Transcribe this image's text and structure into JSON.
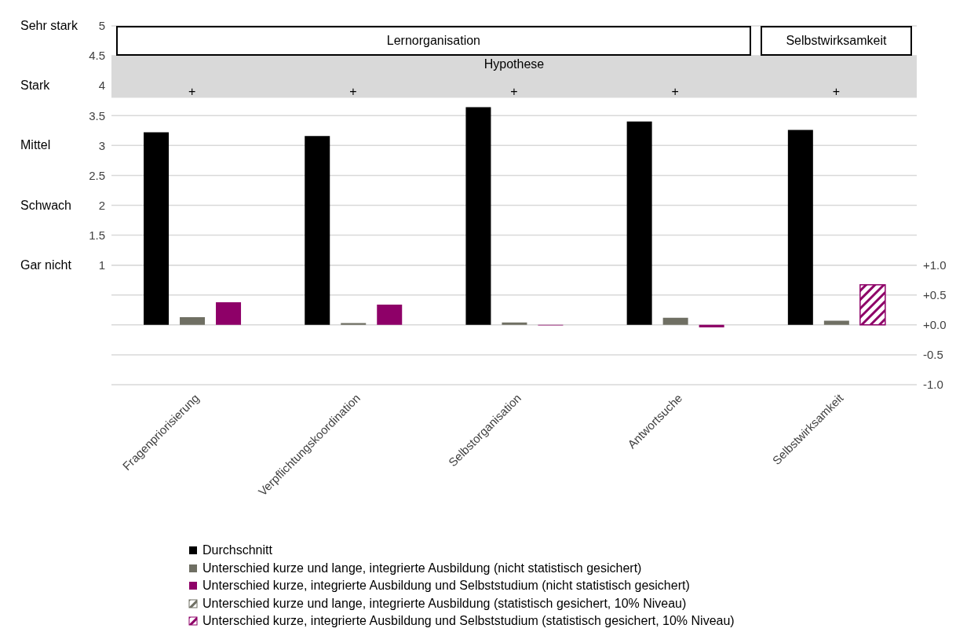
{
  "chart_data": {
    "type": "bar",
    "categories": [
      "Fragenpriorisierung",
      "Verpflichtungskoordination",
      "Selbstorganisation",
      "Antwortsuche",
      "Selbstwirksamkeit"
    ],
    "series": [
      {
        "name": "Durchschnitt",
        "color": "#000000",
        "values": [
          3.22,
          3.16,
          3.64,
          3.4,
          3.26
        ]
      },
      {
        "name": "Unterschied kurze und lange, integrierte Ausbildung (nicht statistisch gesichert)",
        "color": "#6f6f63",
        "axis": "y2",
        "values": [
          0.13,
          0.03,
          0.04,
          0.12,
          0.07
        ]
      },
      {
        "name": "Unterschied kurze, integrierte Ausbildung und Selbststudium (nicht statistisch gesichert)",
        "color": "#8e0068",
        "axis": "y2",
        "values": [
          0.38,
          0.34,
          -0.01,
          -0.04,
          null
        ]
      },
      {
        "name": "Unterschied kurze und lange, integrierte Ausbildung (statistisch gesichert, 10% Niveau)",
        "color": "#6f6f63",
        "axis": "y2",
        "values": [
          null,
          null,
          null,
          null,
          null
        ]
      },
      {
        "name": "Unterschied kurze, integrierte Ausbildung und Selbststudium (statistisch gesichert, 10% Niveau)",
        "color": "#8e0068",
        "axis": "y2",
        "values": [
          null,
          null,
          null,
          null,
          0.67
        ]
      }
    ],
    "ylim": [
      -1,
      5
    ],
    "yticks": [
      1,
      1.5,
      2,
      2.5,
      3,
      3.5,
      4,
      4.5,
      5
    ],
    "y2lim": [
      -1,
      5
    ],
    "y2ticks": [
      {
        "value": -1,
        "label": "-1.0"
      },
      -0.5,
      {
        "value": 0,
        "label": "+0.0"
      },
      {
        "value": 0.5,
        "label": "+0.5"
      },
      {
        "value": 1,
        "label": "+1.0"
      }
    ],
    "bands": [
      {
        "axis": "y",
        "from": 3.8,
        "to": 4.5,
        "label": "Hypothese",
        "color": "#d9d9d9"
      }
    ],
    "annotations": [
      "Lernorganisation",
      "Selbstwirksamkeit",
      "+",
      "+",
      "+",
      "+",
      "+",
      "Gar nicht",
      "Schwach",
      "Mittel",
      "Stark",
      "Sehr stark"
    ],
    "grid": "y",
    "legend": "bottom"
  }
}
